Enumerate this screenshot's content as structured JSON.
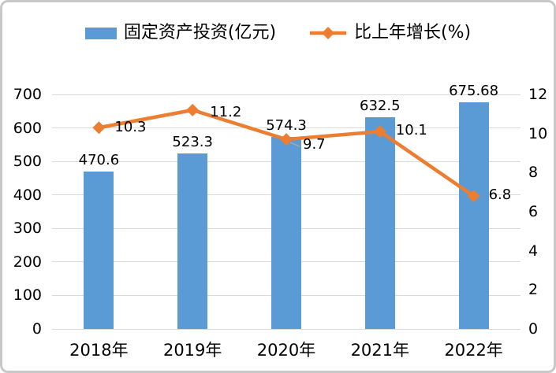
{
  "legend": {
    "items": [
      {
        "label": "固定资产投资(亿元)",
        "type": "bar",
        "color": "#5b9bd5"
      },
      {
        "label": "比上年增长(%)",
        "type": "line",
        "color": "#ed7d31"
      }
    ]
  },
  "chart_data": {
    "type": "bar+line combo",
    "title": "",
    "categories": [
      "2018年",
      "2019年",
      "2020年",
      "2021年",
      "2022年"
    ],
    "series": [
      {
        "name": "固定资产投资(亿元)",
        "type": "bar",
        "axis": "left",
        "color": "#5b9bd5",
        "values": [
          470.6,
          523.3,
          574.3,
          632.5,
          675.68
        ],
        "labels": [
          "470.6",
          "523.3",
          "574.3",
          "632.5",
          "675.68"
        ]
      },
      {
        "name": "比上年增长(%)",
        "type": "line",
        "axis": "right",
        "color": "#ed7d31",
        "marker": "diamond",
        "values": [
          10.3,
          11.2,
          9.7,
          10.1,
          6.8
        ],
        "labels": [
          "10.3",
          "11.2",
          "9.7",
          "10.1",
          "6.8"
        ]
      }
    ],
    "left_axis": {
      "min": 0,
      "max": 700,
      "step": 100,
      "ticks": [
        "0",
        "100",
        "200",
        "300",
        "400",
        "500",
        "600",
        "700"
      ]
    },
    "right_axis": {
      "min": 0,
      "max": 12,
      "step": 2,
      "ticks": [
        "0",
        "2",
        "4",
        "6",
        "8",
        "10",
        "12"
      ]
    },
    "grid": true,
    "gridline_color": "#d9d9d9",
    "leader_line_color": "#a6a6a6",
    "legend_position": "top"
  }
}
